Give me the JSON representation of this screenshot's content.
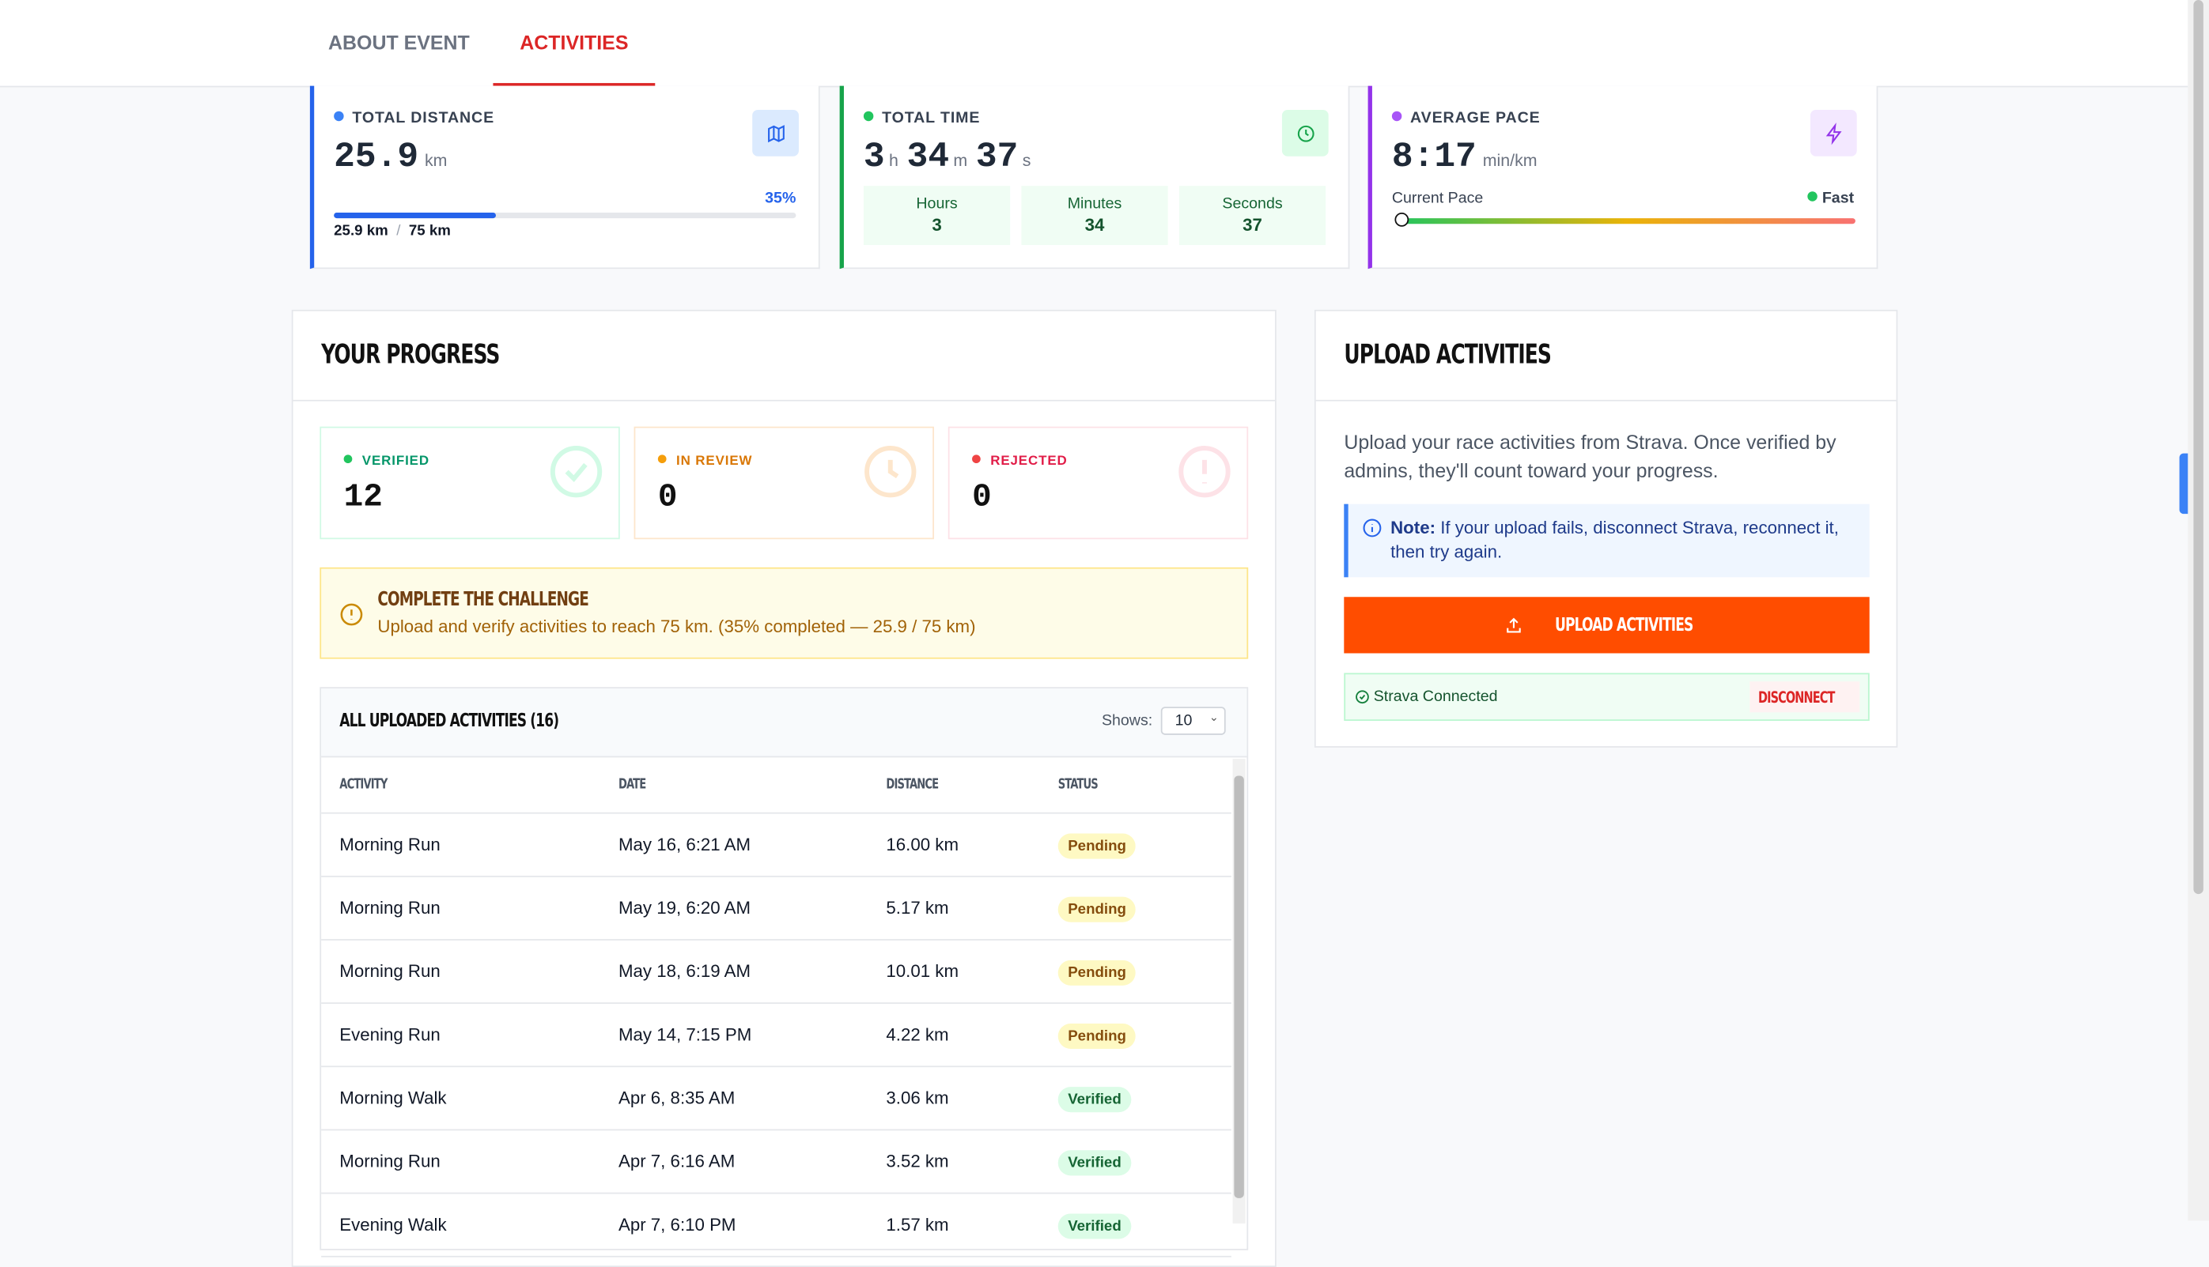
{
  "tabs": [
    "ABOUT EVENT",
    "ACTIVITIES"
  ],
  "stats": {
    "distance": {
      "label": "TOTAL DISTANCE",
      "value": "25.9",
      "unit": "km",
      "progress": {
        "value": 35,
        "label": "35%"
      },
      "current": "25.9 km",
      "separator": "/",
      "goal": "75 km"
    },
    "time": {
      "label": "TOTAL TIME",
      "parts": [
        {
          "value": "3",
          "unit": "h"
        },
        {
          "value": "34",
          "unit": "m"
        },
        {
          "value": "37",
          "unit": "s"
        }
      ],
      "breakdown": [
        {
          "label": "Hours",
          "value": "3"
        },
        {
          "label": "Minutes",
          "value": "34"
        },
        {
          "label": "Seconds",
          "value": "37"
        }
      ]
    },
    "pace": {
      "label": "AVERAGE PACE",
      "value": "8:17",
      "unit": "min/km",
      "current_label": "Current Pace",
      "speed": "Fast"
    }
  },
  "progress": {
    "title": "YOUR PROGRESS",
    "statuses": [
      {
        "label": "VERIFIED",
        "value": "12"
      },
      {
        "label": "IN REVIEW",
        "value": "0"
      },
      {
        "label": "REJECTED",
        "value": "0"
      }
    ],
    "callout": {
      "title": "COMPLETE THE CHALLENGE",
      "text": "Upload and verify activities to reach 75 km. (35% completed — 25.9 / 75 km)"
    },
    "table": {
      "title": "ALL UPLOADED ACTIVITIES (16)",
      "shows_label": "Shows:",
      "shows_value": "10",
      "columns": [
        "ACTIVITY",
        "DATE",
        "DISTANCE",
        "STATUS"
      ],
      "rows": [
        [
          "Morning Run",
          "May 16, 6:21 AM",
          "16.00 km",
          "Pending"
        ],
        [
          "Morning Run",
          "May 19, 6:20 AM",
          "5.17 km",
          "Pending"
        ],
        [
          "Morning Run",
          "May 18, 6:19 AM",
          "10.01 km",
          "Pending"
        ],
        [
          "Evening Run",
          "May 14, 7:15 PM",
          "4.22 km",
          "Pending"
        ],
        [
          "Morning Walk",
          "Apr 6, 8:35 AM",
          "3.06 km",
          "Verified"
        ],
        [
          "Morning Run",
          "Apr 7, 6:16 AM",
          "3.52 km",
          "Verified"
        ],
        [
          "Evening Walk",
          "Apr 7, 6:10 PM",
          "1.57 km",
          "Verified"
        ]
      ]
    }
  },
  "upload": {
    "title": "UPLOAD ACTIVITIES",
    "description": "Upload your race activities from Strava. Once verified by admins, they'll count toward your progress.",
    "note_label": "Note:",
    "note_text": "If your upload fails, disconnect Strava, reconnect it, then try again.",
    "button": "UPLOAD ACTIVITIES",
    "connected": "Strava Connected",
    "disconnect": "DISCONNECT"
  }
}
